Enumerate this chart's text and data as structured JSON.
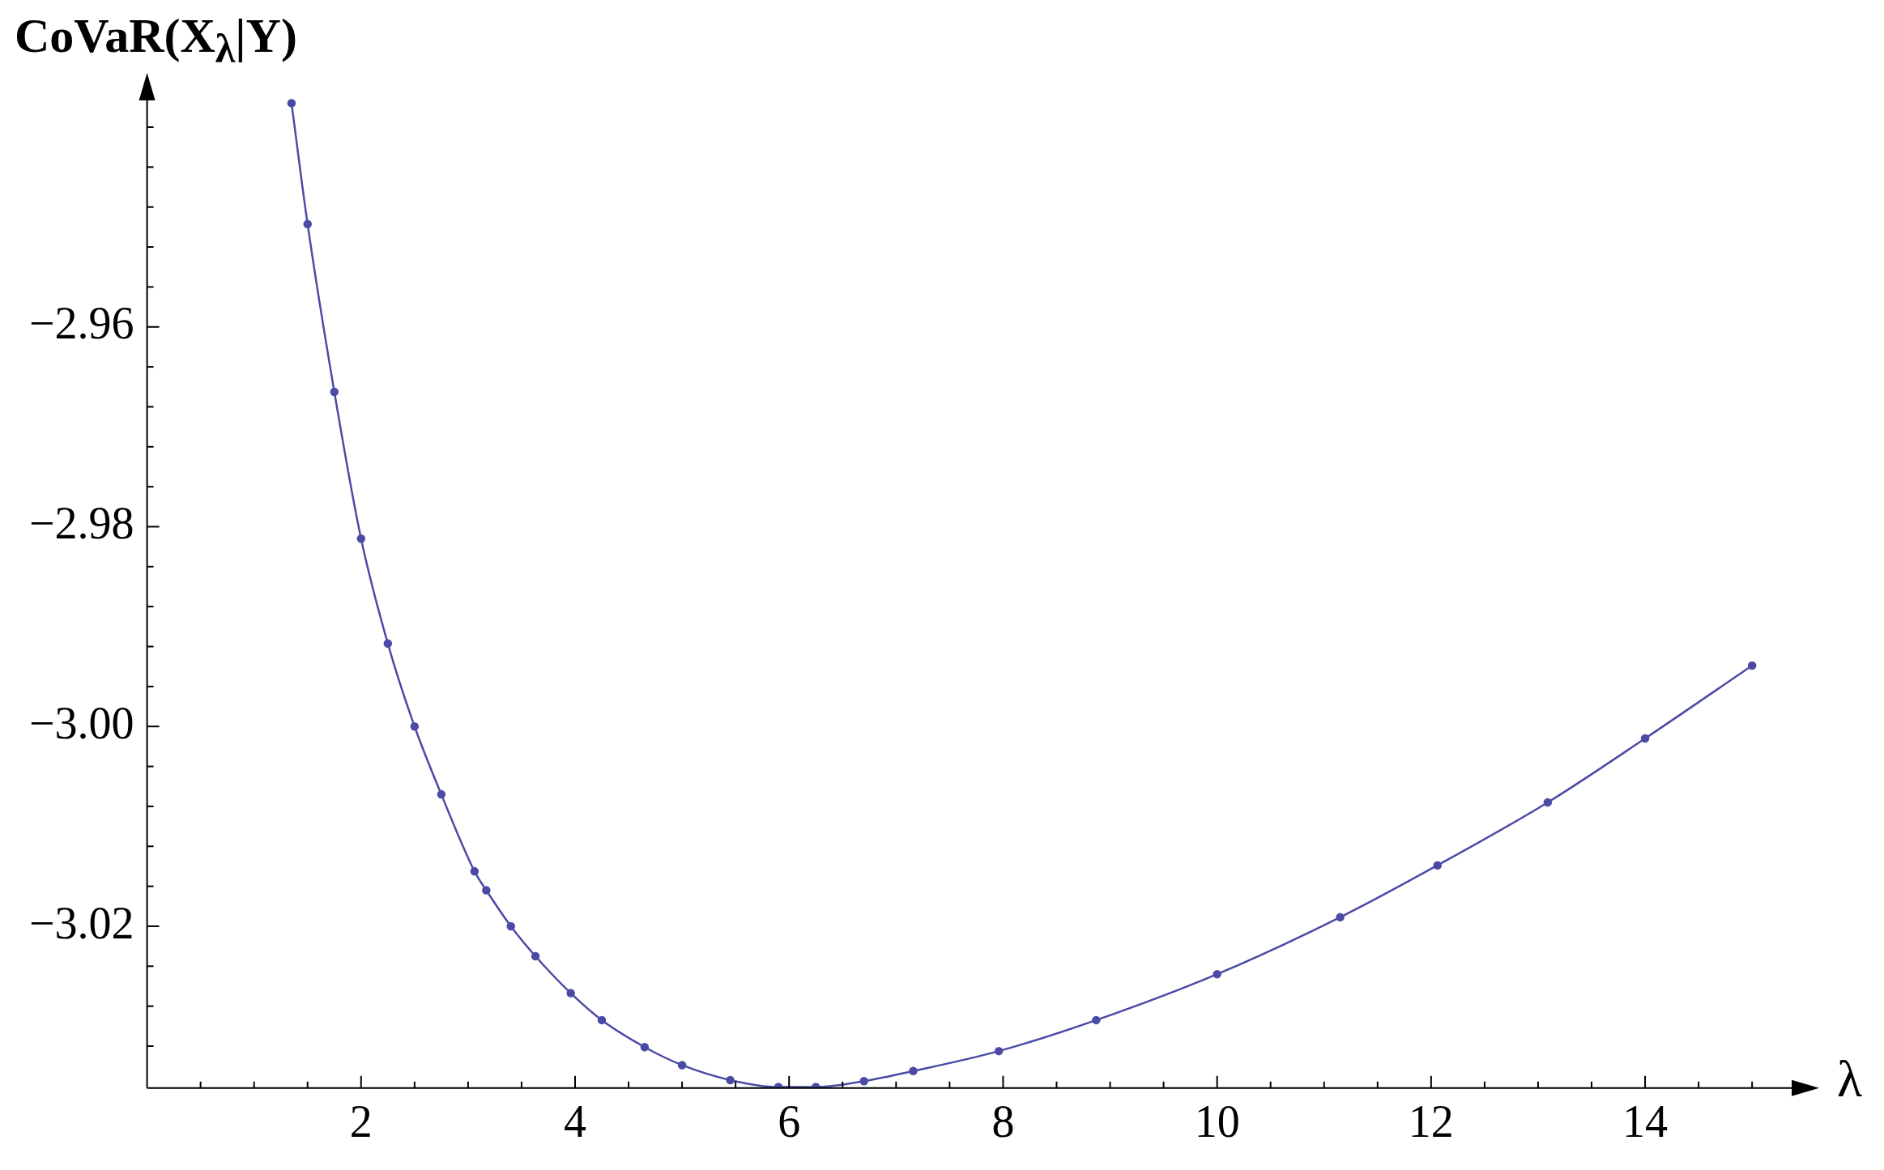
{
  "chart_data": {
    "type": "line",
    "ylabel": "CoVaR(X$_{λ}$|Y)",
    "xlabel": "λ",
    "color": "#4b4ba6",
    "marker": "circle",
    "line_style": "solid",
    "grid": false,
    "legend": false,
    "xlim": [
      0,
      15.4
    ],
    "ylim": [
      -3.0362,
      -2.937
    ],
    "xticks": [
      {
        "value": 0.5,
        "label": null
      },
      {
        "value": 1,
        "label": null
      },
      {
        "value": 1.5,
        "label": null
      },
      2,
      {
        "value": 2.5,
        "label": null
      },
      {
        "value": 3,
        "label": null
      },
      {
        "value": 3.5,
        "label": null
      },
      4,
      {
        "value": 4.5,
        "label": null
      },
      {
        "value": 5,
        "label": null
      },
      {
        "value": 5.5,
        "label": null
      },
      6,
      {
        "value": 6.5,
        "label": null
      },
      {
        "value": 7,
        "label": null
      },
      {
        "value": 7.5,
        "label": null
      },
      8,
      {
        "value": 8.5,
        "label": null
      },
      {
        "value": 9,
        "label": null
      },
      {
        "value": 9.5,
        "label": null
      },
      10,
      {
        "value": 10.5,
        "label": null
      },
      {
        "value": 11,
        "label": null
      },
      {
        "value": 11.5,
        "label": null
      },
      12,
      {
        "value": 12.5,
        "label": null
      },
      {
        "value": 13,
        "label": null
      },
      {
        "value": 13.5,
        "label": null
      },
      14,
      {
        "value": 14.5,
        "label": null
      },
      {
        "value": 15,
        "label": null
      }
    ],
    "yticks": [
      {
        "value": -3.032,
        "label": null
      },
      {
        "value": -3.028,
        "label": null
      },
      {
        "value": -3.024,
        "label": null
      },
      {
        "value": -3.02,
        "label": "−3.02"
      },
      {
        "value": -3.016,
        "label": null
      },
      {
        "value": -3.012,
        "label": null
      },
      {
        "value": -3.008,
        "label": null
      },
      {
        "value": -3.004,
        "label": null
      },
      {
        "value": -3.0,
        "label": "−3.00"
      },
      {
        "value": -2.996,
        "label": null
      },
      {
        "value": -2.992,
        "label": null
      },
      {
        "value": -2.988,
        "label": null
      },
      {
        "value": -2.984,
        "label": null
      },
      {
        "value": -2.98,
        "label": "−2.98"
      },
      {
        "value": -2.976,
        "label": null
      },
      {
        "value": -2.972,
        "label": null
      },
      {
        "value": -2.968,
        "label": null
      },
      {
        "value": -2.964,
        "label": null
      },
      {
        "value": -2.96,
        "label": "−2.96"
      },
      {
        "value": -2.956,
        "label": null
      },
      {
        "value": -2.952,
        "label": null
      },
      {
        "value": -2.948,
        "label": null
      },
      {
        "value": -2.944,
        "label": null
      },
      {
        "value": -2.94,
        "label": null
      }
    ],
    "x": [
      1.35,
      1.5,
      1.75,
      2.0,
      2.25,
      2.5,
      2.75,
      3.06,
      3.17,
      3.4,
      3.63,
      3.96,
      4.25,
      4.65,
      5.0,
      5.45,
      5.9,
      6.25,
      6.7,
      7.16,
      7.96,
      8.87,
      10.0,
      11.15,
      12.06,
      13.09,
      14.0,
      15.0
    ],
    "values": [
      -2.9376,
      -2.9497,
      -2.9665,
      -2.9812,
      -2.9917,
      -3.0,
      -3.0068,
      -3.0145,
      -3.0164,
      -3.02,
      -3.023,
      -3.0267,
      -3.0294,
      -3.0321,
      -3.0339,
      -3.0354,
      -3.0361,
      -3.0361,
      -3.0355,
      -3.0345,
      -3.0325,
      -3.0294,
      -3.0248,
      -3.0191,
      -3.0139,
      -3.0076,
      -3.0012,
      -2.9939
    ]
  }
}
